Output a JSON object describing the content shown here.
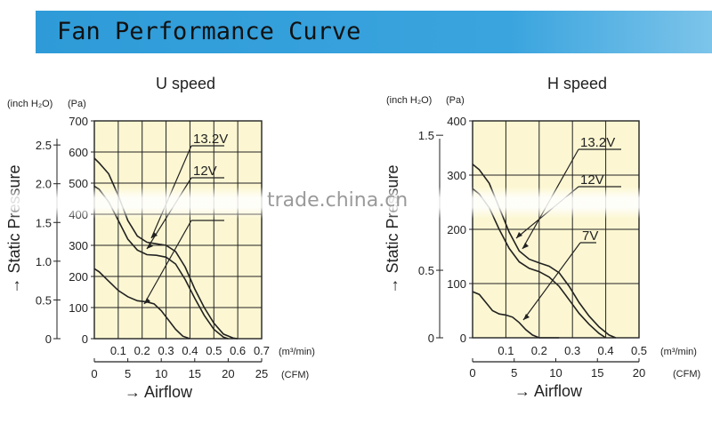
{
  "banner": {
    "title": "Fan Performance Curve"
  },
  "watermark": "trade.china.cn",
  "chart_data": [
    {
      "type": "line",
      "title": "U speed",
      "ylabel": "→ Static Pressure",
      "xlabel": "→ Airflow",
      "y_unit_left": "(inch H₂O)",
      "y_unit_right": "(Pa)",
      "x_unit_top": "(m³/min)",
      "x_unit_bottom": "(CFM)",
      "pa_ticks": [
        "0",
        "100",
        "200",
        "300",
        "400",
        "500",
        "600",
        "700"
      ],
      "inch_ticks": [
        "0",
        "0.5",
        "1.0",
        "1.5",
        "2.0",
        "2.5"
      ],
      "m3_ticks": [
        "0.1",
        "0.2",
        "0.3",
        "0.4",
        "0.5",
        "0.6",
        "0.7"
      ],
      "cfm_ticks": [
        "0",
        "5",
        "10",
        "15",
        "20",
        "25"
      ],
      "xlim": [
        0,
        0.7
      ],
      "ylim": [
        0,
        700
      ],
      "grid": true,
      "series": [
        {
          "name": "13.2V",
          "x": [
            0,
            0.02,
            0.06,
            0.1,
            0.14,
            0.18,
            0.22,
            0.26,
            0.3,
            0.34,
            0.38,
            0.42,
            0.46,
            0.5,
            0.54,
            0.58,
            0.6
          ],
          "y": [
            580,
            565,
            530,
            460,
            380,
            330,
            310,
            305,
            300,
            280,
            230,
            160,
            100,
            50,
            15,
            2,
            0
          ]
        },
        {
          "name": "12V",
          "x": [
            0,
            0.02,
            0.06,
            0.1,
            0.14,
            0.18,
            0.22,
            0.26,
            0.3,
            0.34,
            0.38,
            0.42,
            0.46,
            0.5,
            0.54,
            0.56
          ],
          "y": [
            490,
            480,
            440,
            380,
            320,
            285,
            270,
            268,
            262,
            240,
            190,
            130,
            75,
            30,
            5,
            0
          ]
        },
        {
          "name": "",
          "x": [
            0,
            0.02,
            0.06,
            0.1,
            0.14,
            0.18,
            0.22,
            0.25,
            0.28,
            0.31,
            0.34,
            0.37,
            0.4
          ],
          "y": [
            225,
            215,
            185,
            155,
            135,
            122,
            118,
            112,
            90,
            60,
            30,
            8,
            0
          ]
        }
      ]
    },
    {
      "type": "line",
      "title": "H speed",
      "ylabel": "→ Static Pressure",
      "xlabel": "→ Airflow",
      "y_unit_left": "(inch H₂O)",
      "y_unit_right": "(Pa)",
      "x_unit_top": "(m³/min)",
      "x_unit_bottom": "(CFM)",
      "pa_ticks": [
        "0",
        "100",
        "200",
        "300",
        "400"
      ],
      "inch_ticks": [
        "0",
        "0.5",
        "1.5"
      ],
      "m3_ticks": [
        "0.1",
        "0.2",
        "0.3",
        "0.4",
        "0.5"
      ],
      "cfm_ticks": [
        "0",
        "5",
        "10",
        "15",
        "20"
      ],
      "xlim": [
        0,
        0.5
      ],
      "ylim": [
        0,
        400
      ],
      "grid": true,
      "series": [
        {
          "name": "13.2V",
          "x": [
            0,
            0.02,
            0.05,
            0.08,
            0.11,
            0.14,
            0.17,
            0.2,
            0.23,
            0.26,
            0.29,
            0.32,
            0.35,
            0.38,
            0.41,
            0.43
          ],
          "y": [
            320,
            310,
            285,
            240,
            195,
            160,
            145,
            138,
            132,
            120,
            95,
            65,
            40,
            20,
            5,
            0
          ]
        },
        {
          "name": "12V",
          "x": [
            0,
            0.02,
            0.05,
            0.08,
            0.11,
            0.14,
            0.17,
            0.2,
            0.23,
            0.26,
            0.29,
            0.32,
            0.35,
            0.38,
            0.4
          ],
          "y": [
            275,
            265,
            240,
            200,
            165,
            140,
            128,
            122,
            112,
            95,
            70,
            45,
            25,
            8,
            0
          ]
        },
        {
          "name": "7V",
          "x": [
            0,
            0.02,
            0.04,
            0.06,
            0.08,
            0.1,
            0.12,
            0.14,
            0.16,
            0.18,
            0.2,
            0.22,
            0.24,
            0.26
          ],
          "y": [
            85,
            80,
            65,
            50,
            44,
            42,
            38,
            28,
            15,
            5,
            0,
            0,
            0,
            0
          ]
        }
      ]
    }
  ]
}
